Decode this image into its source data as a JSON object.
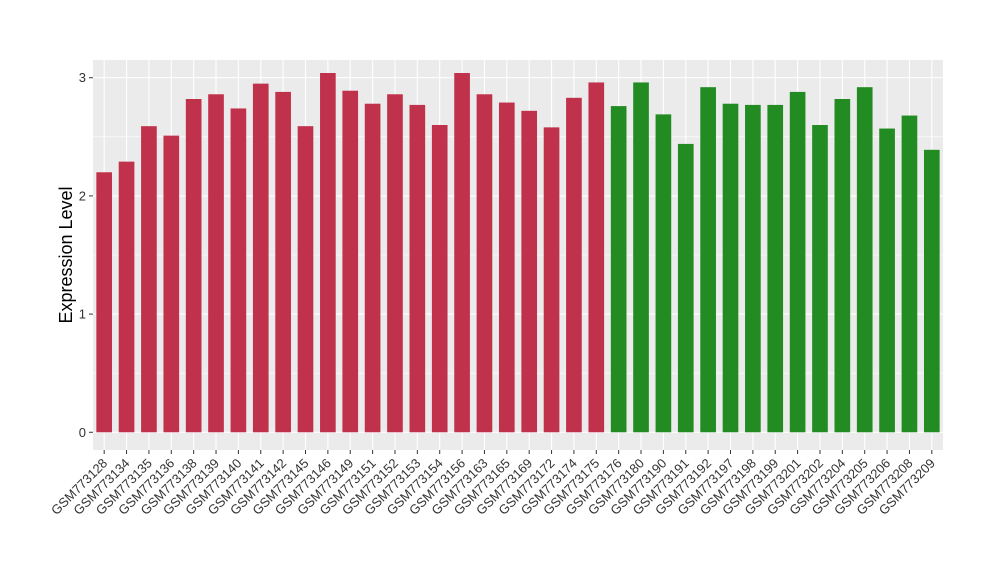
{
  "chart_data": {
    "type": "bar",
    "title": "",
    "xlabel": "",
    "ylabel": "Expression Level",
    "ylim": [
      -0.15,
      3.15
    ],
    "yticks": [
      0,
      1,
      2,
      3
    ],
    "grid": true,
    "legend": "none",
    "colors": {
      "group1": "#C0314B",
      "group2": "#228B22",
      "panel": "#EBEBEB",
      "gridline": "#FFFFFF"
    },
    "categories": [
      "GSM773128",
      "GSM773134",
      "GSM773135",
      "GSM773136",
      "GSM773138",
      "GSM773139",
      "GSM773140",
      "GSM773141",
      "GSM773142",
      "GSM773145",
      "GSM773146",
      "GSM773149",
      "GSM773151",
      "GSM773152",
      "GSM773153",
      "GSM773154",
      "GSM773156",
      "GSM773163",
      "GSM773165",
      "GSM773169",
      "GSM773172",
      "GSM773174",
      "GSM773175",
      "GSM773176",
      "GSM773180",
      "GSM773190",
      "GSM773191",
      "GSM773192",
      "GSM773197",
      "GSM773198",
      "GSM773199",
      "GSM773201",
      "GSM773202",
      "GSM773204",
      "GSM773205",
      "GSM773206",
      "GSM773208",
      "GSM773209"
    ],
    "values": [
      2.2,
      2.29,
      2.59,
      2.51,
      2.82,
      2.86,
      2.74,
      2.95,
      2.88,
      2.59,
      3.04,
      2.89,
      2.78,
      2.86,
      2.77,
      2.6,
      3.04,
      2.86,
      2.79,
      2.72,
      2.58,
      2.83,
      2.96,
      2.76,
      2.96,
      2.69,
      2.44,
      2.92,
      2.78,
      2.77,
      2.77,
      2.88,
      2.6,
      2.82,
      2.92,
      2.57,
      2.68,
      2.39
    ],
    "groups": [
      1,
      1,
      1,
      1,
      1,
      1,
      1,
      1,
      1,
      1,
      1,
      1,
      1,
      1,
      1,
      1,
      1,
      1,
      1,
      1,
      1,
      1,
      1,
      2,
      2,
      2,
      2,
      2,
      2,
      2,
      2,
      2,
      2,
      2,
      2,
      2,
      2,
      2
    ]
  }
}
